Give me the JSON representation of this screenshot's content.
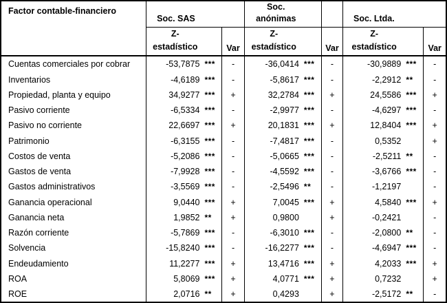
{
  "table": {
    "factor_header": "Factor contable-financiero",
    "z_label_line1": "Z-",
    "z_label_line2": "estadístico",
    "var_label": "Var",
    "groups": [
      {
        "name": "Soc. SAS"
      },
      {
        "name_line1": "Soc.",
        "name_line2": "anónimas"
      },
      {
        "name": "Soc. Ltda."
      }
    ],
    "rows": [
      {
        "factor": "Cuentas comerciales por cobrar",
        "cells": [
          {
            "z": "-53,7875",
            "sig": "***",
            "var": "-"
          },
          {
            "z": "-36,0414",
            "sig": "***",
            "var": "-"
          },
          {
            "z": "-30,9889",
            "sig": "***",
            "var": "-"
          }
        ]
      },
      {
        "factor": "Inventarios",
        "cells": [
          {
            "z": "-4,6189",
            "sig": "***",
            "var": "-"
          },
          {
            "z": "-5,8617",
            "sig": "***",
            "var": "-"
          },
          {
            "z": "-2,2912",
            "sig": "**",
            "var": "-"
          }
        ]
      },
      {
        "factor": "Propiedad, planta y equipo",
        "cells": [
          {
            "z": "34,9277",
            "sig": "***",
            "var": "+"
          },
          {
            "z": "32,2784",
            "sig": "***",
            "var": "+"
          },
          {
            "z": "24,5586",
            "sig": "***",
            "var": "+"
          }
        ]
      },
      {
        "factor": "Pasivo corriente",
        "cells": [
          {
            "z": "-6,5334",
            "sig": "***",
            "var": "-"
          },
          {
            "z": "-2,9977",
            "sig": "***",
            "var": "-"
          },
          {
            "z": "-4,6297",
            "sig": "***",
            "var": "-"
          }
        ]
      },
      {
        "factor": "Pasivo no corriente",
        "cells": [
          {
            "z": "22,6697",
            "sig": "***",
            "var": "+"
          },
          {
            "z": "20,1831",
            "sig": "***",
            "var": "+"
          },
          {
            "z": "12,8404",
            "sig": "***",
            "var": "+"
          }
        ]
      },
      {
        "factor": "Patrimonio",
        "cells": [
          {
            "z": "-6,3155",
            "sig": "***",
            "var": "-"
          },
          {
            "z": "-7,4817",
            "sig": "***",
            "var": "-"
          },
          {
            "z": "0,5352",
            "sig": "",
            "var": "+"
          }
        ]
      },
      {
        "factor": "Costos de venta",
        "cells": [
          {
            "z": "-5,2086",
            "sig": "***",
            "var": "-"
          },
          {
            "z": "-5,0665",
            "sig": "***",
            "var": "-"
          },
          {
            "z": "-2,5211",
            "sig": "**",
            "var": "-"
          }
        ]
      },
      {
        "factor": "Gastos de venta",
        "cells": [
          {
            "z": "-7,9928",
            "sig": "***",
            "var": "-"
          },
          {
            "z": "-4,5592",
            "sig": "***",
            "var": "-"
          },
          {
            "z": "-3,6766",
            "sig": "***",
            "var": "-"
          }
        ]
      },
      {
        "factor": "Gastos administrativos",
        "cells": [
          {
            "z": "-3,5569",
            "sig": "***",
            "var": "-"
          },
          {
            "z": "-2,5496",
            "sig": "**",
            "var": "-"
          },
          {
            "z": "-1,2197",
            "sig": "",
            "var": "-"
          }
        ]
      },
      {
        "factor": "Ganancia operacional",
        "cells": [
          {
            "z": "9,0440",
            "sig": "***",
            "var": "+"
          },
          {
            "z": "7,0045",
            "sig": "***",
            "var": "+"
          },
          {
            "z": "4,5840",
            "sig": "***",
            "var": "+"
          }
        ]
      },
      {
        "factor": "Ganancia neta",
        "cells": [
          {
            "z": "1,9852",
            "sig": "**",
            "var": "+"
          },
          {
            "z": "0,9800",
            "sig": "",
            "var": "+"
          },
          {
            "z": "-0,2421",
            "sig": "",
            "var": "-"
          }
        ]
      },
      {
        "factor": "Razón corriente",
        "cells": [
          {
            "z": "-5,7869",
            "sig": "***",
            "var": "-"
          },
          {
            "z": "-6,3010",
            "sig": "***",
            "var": "-"
          },
          {
            "z": "-2,0800",
            "sig": "**",
            "var": "-"
          }
        ]
      },
      {
        "factor": "Solvencia",
        "cells": [
          {
            "z": "-15,8240",
            "sig": "***",
            "var": "-"
          },
          {
            "z": "-16,2277",
            "sig": "***",
            "var": "-"
          },
          {
            "z": "-4,6947",
            "sig": "***",
            "var": "-"
          }
        ]
      },
      {
        "factor": "Endeudamiento",
        "cells": [
          {
            "z": "11,2277",
            "sig": "***",
            "var": "+"
          },
          {
            "z": "13,4716",
            "sig": "***",
            "var": "+"
          },
          {
            "z": "4,2033",
            "sig": "***",
            "var": "+"
          }
        ]
      },
      {
        "factor": "ROA",
        "cells": [
          {
            "z": "5,8069",
            "sig": "***",
            "var": "+"
          },
          {
            "z": "4,0771",
            "sig": "***",
            "var": "+"
          },
          {
            "z": "0,7232",
            "sig": "",
            "var": "+"
          }
        ]
      },
      {
        "factor": "ROE",
        "cells": [
          {
            "z": "2,0716",
            "sig": "**",
            "var": "+"
          },
          {
            "z": "0,4293",
            "sig": "",
            "var": "+"
          },
          {
            "z": "-2,5172",
            "sig": "**",
            "var": "-"
          }
        ]
      }
    ]
  }
}
